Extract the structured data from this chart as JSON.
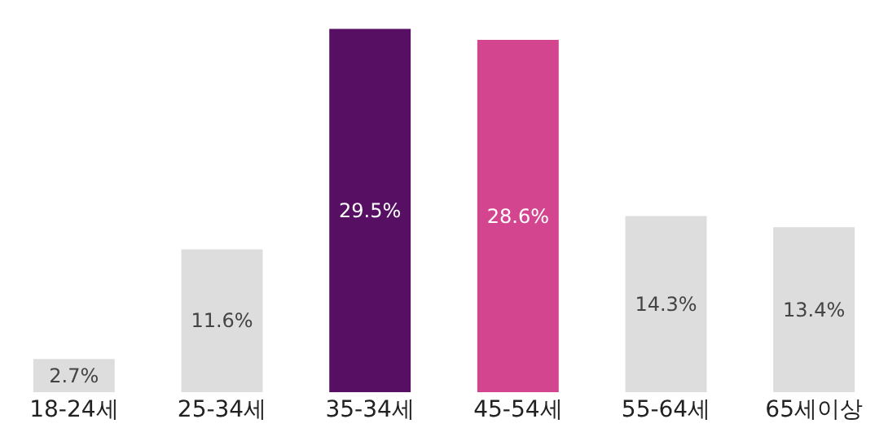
{
  "chart_data": {
    "type": "bar",
    "categories": [
      "18-24세",
      "25-34세",
      "35-34세",
      "45-54세",
      "55-64세",
      "65세이상"
    ],
    "values": [
      2.7,
      11.6,
      29.5,
      28.6,
      14.3,
      13.4
    ],
    "colors": [
      "#dddddd",
      "#dddddd",
      "#560f63",
      "#d44590",
      "#dddddd",
      "#dddddd"
    ],
    "value_labels": [
      "2.7%",
      "11.6%",
      "29.5%",
      "28.6%",
      "14.3%",
      "13.4%"
    ],
    "tick_labels": "x"
  }
}
